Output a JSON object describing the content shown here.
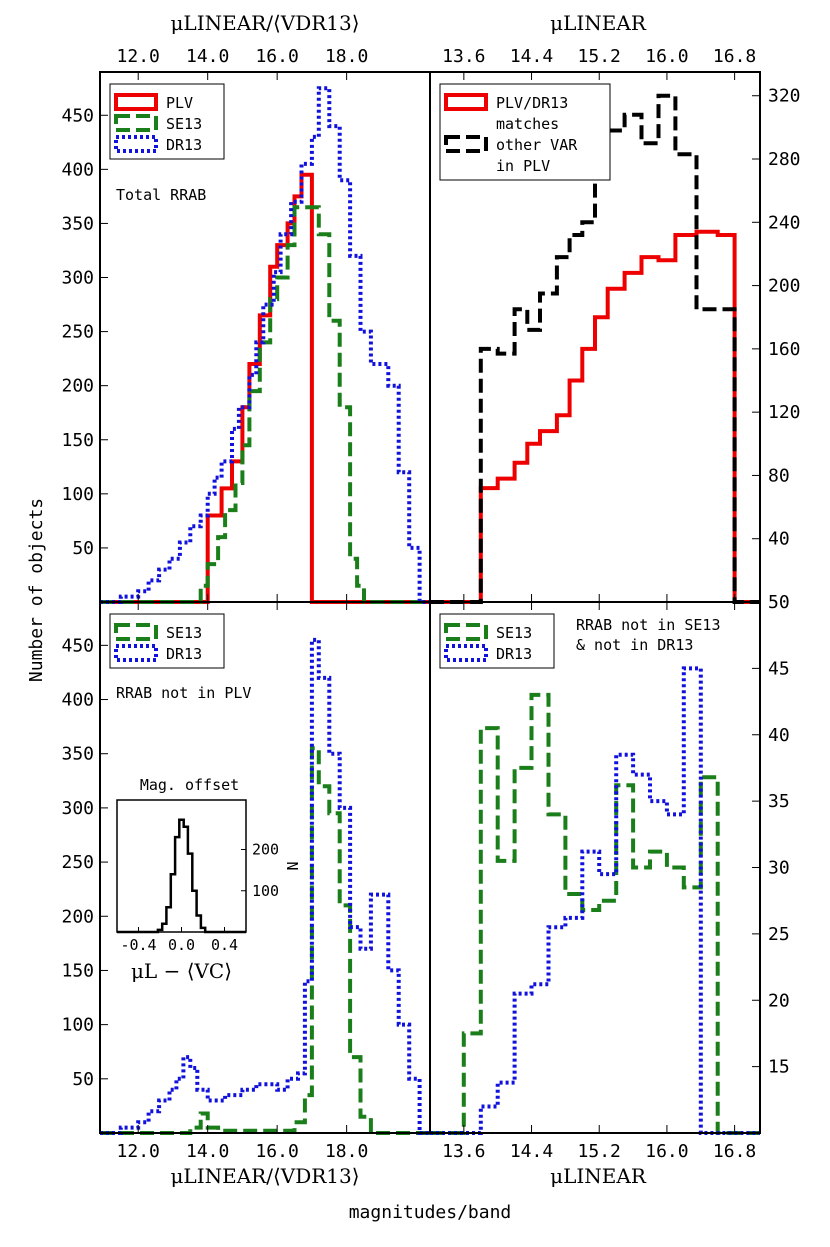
{
  "figure": {
    "top_axis_title": "μLINEAR/⟨VDR13⟩",
    "top_right_axis_title": "μLINEAR",
    "bottom_axis_title": "μLINEAR/⟨VDR13⟩",
    "bottom_right_axis_title": "μLINEAR",
    "ylabel": "Number of objects",
    "xlabel": "magnitudes/band",
    "top_ticks_left": [
      "12.0",
      "14.0",
      "16.0",
      "18.0"
    ],
    "top_ticks_right": [
      "13.6",
      "14.4",
      "15.2",
      "16.0",
      "16.8"
    ],
    "bottom_ticks_left": [
      "12.0",
      "14.0",
      "16.0",
      "18.0"
    ],
    "bottom_ticks_right": [
      "13.6",
      "14.4",
      "15.2",
      "16.0",
      "16.8"
    ]
  },
  "chart_data": [
    {
      "type": "line",
      "panel": "top-left",
      "annotation": "Total RRAB",
      "ylim": [
        0,
        490
      ],
      "yticks": [
        "50",
        "100",
        "150",
        "200",
        "250",
        "300",
        "350",
        "400",
        "450"
      ],
      "xlim": [
        10.9,
        20.4
      ],
      "legend": "top-left",
      "series": [
        {
          "name": "PLV",
          "color": "#ee0000",
          "style": "solid",
          "x": [
            10.9,
            14.0,
            14.0,
            14.4,
            14.4,
            14.7,
            14.7,
            15.0,
            15.0,
            15.2,
            15.2,
            15.5,
            15.5,
            15.8,
            15.8,
            16.0,
            16.0,
            16.3,
            16.3,
            16.5,
            16.5,
            16.7,
            16.7,
            17.0,
            17.0,
            20.4
          ],
          "y": [
            0,
            0,
            80,
            80,
            105,
            105,
            130,
            130,
            180,
            180,
            220,
            220,
            265,
            265,
            310,
            310,
            330,
            330,
            350,
            350,
            375,
            375,
            395,
            395,
            0,
            0
          ]
        },
        {
          "name": "SE13",
          "color": "#1a7f1a",
          "style": "dashed",
          "x": [
            10.9,
            13.8,
            13.8,
            14.0,
            14.0,
            14.3,
            14.3,
            14.5,
            14.5,
            14.8,
            14.8,
            15.0,
            15.0,
            15.2,
            15.2,
            15.5,
            15.5,
            15.8,
            15.8,
            16.0,
            16.0,
            16.3,
            16.3,
            16.5,
            16.5,
            17.2,
            17.2,
            17.5,
            17.5,
            17.8,
            17.8,
            18.1,
            18.1,
            18.3,
            18.3,
            18.5,
            18.5,
            20.4
          ],
          "y": [
            0,
            0,
            15,
            15,
            35,
            35,
            60,
            60,
            85,
            85,
            110,
            110,
            145,
            145,
            195,
            195,
            240,
            240,
            280,
            280,
            300,
            300,
            330,
            330,
            365,
            365,
            340,
            340,
            260,
            260,
            180,
            180,
            40,
            40,
            15,
            15,
            0,
            0
          ]
        },
        {
          "name": "DR13",
          "color": "#1111dd",
          "style": "dotted",
          "x": [
            10.9,
            11.5,
            11.5,
            12.0,
            12.0,
            12.3,
            12.3,
            12.6,
            12.6,
            12.9,
            12.9,
            13.2,
            13.2,
            13.5,
            13.5,
            13.8,
            13.8,
            14.0,
            14.0,
            14.2,
            14.2,
            14.4,
            14.4,
            14.7,
            14.7,
            14.9,
            14.9,
            15.2,
            15.2,
            15.4,
            15.4,
            15.6,
            15.6,
            15.9,
            15.9,
            16.1,
            16.1,
            16.4,
            16.4,
            16.7,
            16.7,
            17.0,
            17.0,
            17.2,
            17.2,
            17.5,
            17.5,
            17.8,
            17.8,
            18.1,
            18.1,
            18.4,
            18.4,
            18.7,
            18.7,
            19.2,
            19.2,
            19.5,
            19.5,
            19.8,
            19.8,
            20.1,
            20.1,
            20.4
          ],
          "y": [
            0,
            0,
            5,
            5,
            10,
            10,
            20,
            20,
            30,
            30,
            40,
            40,
            55,
            55,
            70,
            70,
            80,
            80,
            100,
            100,
            115,
            115,
            130,
            130,
            160,
            160,
            180,
            180,
            210,
            210,
            240,
            240,
            275,
            275,
            305,
            305,
            340,
            340,
            370,
            370,
            405,
            405,
            430,
            430,
            475,
            475,
            440,
            440,
            390,
            390,
            320,
            320,
            250,
            250,
            220,
            220,
            200,
            200,
            120,
            120,
            50,
            50,
            0,
            0
          ]
        }
      ]
    },
    {
      "type": "line",
      "panel": "top-right",
      "ylim": [
        0,
        335
      ],
      "yticks": [
        "40",
        "80",
        "120",
        "160",
        "200",
        "240",
        "280",
        "320"
      ],
      "xlim": [
        13.2,
        17.1
      ],
      "legend": "top-left",
      "series": [
        {
          "name": "PLV/DR13 matches",
          "color": "#ee0000",
          "style": "solid",
          "x": [
            13.2,
            13.8,
            13.8,
            14.0,
            14.0,
            14.2,
            14.2,
            14.35,
            14.35,
            14.5,
            14.5,
            14.7,
            14.7,
            14.85,
            14.85,
            15.0,
            15.0,
            15.15,
            15.15,
            15.3,
            15.3,
            15.5,
            15.5,
            15.7,
            15.7,
            15.9,
            15.9,
            16.1,
            16.1,
            16.35,
            16.35,
            16.6,
            16.6,
            16.8,
            16.8,
            17.1
          ],
          "y": [
            0,
            0,
            72,
            72,
            78,
            78,
            88,
            88,
            100,
            100,
            108,
            108,
            118,
            118,
            140,
            140,
            160,
            160,
            180,
            180,
            198,
            198,
            208,
            208,
            218,
            218,
            216,
            216,
            232,
            232,
            234,
            234,
            232,
            232,
            0,
            0
          ]
        },
        {
          "name": "other VAR in PLV",
          "color": "#000000",
          "style": "dashed",
          "x": [
            13.2,
            13.8,
            13.8,
            14.0,
            14.0,
            14.2,
            14.2,
            14.35,
            14.35,
            14.5,
            14.5,
            14.7,
            14.7,
            14.85,
            14.85,
            15.0,
            15.0,
            15.15,
            15.15,
            15.3,
            15.3,
            15.5,
            15.5,
            15.7,
            15.7,
            15.9,
            15.9,
            16.1,
            16.1,
            16.35,
            16.35,
            16.6,
            16.6,
            16.8,
            16.8,
            17.1
          ],
          "y": [
            0,
            0,
            160,
            160,
            157,
            157,
            185,
            185,
            172,
            172,
            195,
            195,
            218,
            218,
            232,
            232,
            240,
            240,
            272,
            272,
            298,
            298,
            308,
            308,
            290,
            290,
            320,
            320,
            283,
            283,
            185,
            185,
            185,
            185,
            0,
            0
          ]
        }
      ]
    },
    {
      "type": "line",
      "panel": "bottom-left",
      "annotation": "RRAB not in PLV",
      "ylim": [
        0,
        490
      ],
      "yticks": [
        "50",
        "100",
        "150",
        "200",
        "250",
        "300",
        "350",
        "400",
        "450"
      ],
      "xlim": [
        10.9,
        20.4
      ],
      "legend": "top-left",
      "series": [
        {
          "name": "SE13",
          "color": "#1a7f1a",
          "style": "dashed",
          "x": [
            10.9,
            13.5,
            13.5,
            13.8,
            13.8,
            14.0,
            14.0,
            14.3,
            14.3,
            16.5,
            16.5,
            16.8,
            16.8,
            17.0,
            17.0,
            17.2,
            17.2,
            17.5,
            17.5,
            17.8,
            17.8,
            18.1,
            18.1,
            18.4,
            18.4,
            18.7,
            18.7,
            20.4
          ],
          "y": [
            0,
            0,
            5,
            5,
            18,
            18,
            5,
            5,
            2,
            2,
            10,
            10,
            35,
            35,
            355,
            355,
            320,
            320,
            295,
            295,
            210,
            210,
            70,
            70,
            15,
            15,
            0,
            0
          ]
        },
        {
          "name": "DR13",
          "color": "#1111dd",
          "style": "dotted",
          "x": [
            10.9,
            11.5,
            11.5,
            12.0,
            12.0,
            12.3,
            12.3,
            12.6,
            12.6,
            12.9,
            12.9,
            13.1,
            13.1,
            13.3,
            13.3,
            13.5,
            13.5,
            13.7,
            13.7,
            14.0,
            14.0,
            14.5,
            14.5,
            15.0,
            15.0,
            15.4,
            15.4,
            16.0,
            16.0,
            16.3,
            16.3,
            16.6,
            16.6,
            16.8,
            16.8,
            17.0,
            17.0,
            17.2,
            17.2,
            17.5,
            17.5,
            17.8,
            17.8,
            18.1,
            18.1,
            18.4,
            18.4,
            18.7,
            18.7,
            19.2,
            19.2,
            19.5,
            19.5,
            19.8,
            19.8,
            20.1,
            20.1,
            20.4
          ],
          "y": [
            0,
            0,
            5,
            5,
            10,
            10,
            20,
            20,
            30,
            30,
            40,
            40,
            50,
            50,
            70,
            70,
            60,
            60,
            40,
            40,
            30,
            30,
            35,
            35,
            40,
            40,
            45,
            45,
            40,
            40,
            50,
            50,
            55,
            55,
            140,
            140,
            455,
            455,
            420,
            420,
            350,
            350,
            300,
            300,
            190,
            190,
            170,
            170,
            220,
            220,
            150,
            150,
            100,
            100,
            50,
            50,
            0,
            0
          ]
        }
      ]
    },
    {
      "type": "line",
      "panel": "bottom-left-inset",
      "title": "Mag. offset",
      "xlabel": "μL − ⟨VC⟩",
      "ylabel": "N",
      "xticks": [
        "-0.4",
        "0.0",
        "0.4"
      ],
      "yticks": [
        "100",
        "200"
      ],
      "xlim": [
        -0.6,
        0.6
      ],
      "ylim": [
        0,
        320
      ],
      "series": [
        {
          "name": "",
          "color": "#000000",
          "style": "solid",
          "x": [
            -0.6,
            -0.22,
            -0.22,
            -0.18,
            -0.18,
            -0.14,
            -0.14,
            -0.1,
            -0.1,
            -0.06,
            -0.06,
            -0.02,
            -0.02,
            0.02,
            0.02,
            0.06,
            0.06,
            0.1,
            0.1,
            0.14,
            0.14,
            0.18,
            0.18,
            0.22,
            0.22,
            0.6
          ],
          "y": [
            0,
            0,
            5,
            5,
            20,
            20,
            60,
            60,
            140,
            140,
            230,
            230,
            272,
            272,
            255,
            255,
            190,
            190,
            100,
            100,
            40,
            40,
            10,
            10,
            0,
            0
          ]
        }
      ]
    },
    {
      "type": "line",
      "panel": "bottom-right",
      "annotation": "RRAB not in SE13 & not in DR13",
      "ylim": [
        10,
        50
      ],
      "yticks": [
        "15",
        "20",
        "25",
        "30",
        "35",
        "40",
        "45",
        "50"
      ],
      "xlim": [
        13.2,
        17.1
      ],
      "legend": "top-left",
      "series": [
        {
          "name": "SE13",
          "color": "#1a7f1a",
          "style": "dashed",
          "x": [
            13.2,
            13.6,
            13.6,
            13.8,
            13.8,
            14.0,
            14.0,
            14.2,
            14.2,
            14.4,
            14.4,
            14.6,
            14.6,
            14.8,
            14.8,
            15.0,
            15.0,
            15.2,
            15.2,
            15.4,
            15.4,
            15.6,
            15.6,
            15.8,
            15.8,
            16.0,
            16.0,
            16.2,
            16.2,
            16.4,
            16.4,
            16.6,
            16.6,
            16.8,
            16.8,
            17.1
          ],
          "y": [
            10,
            10,
            17.5,
            17.5,
            40.5,
            40.5,
            30.5,
            30.5,
            37.5,
            37.5,
            43,
            43,
            34,
            34,
            28,
            28,
            26.8,
            26.8,
            27.5,
            27.5,
            36.2,
            36.2,
            30,
            30,
            31.2,
            31.2,
            30,
            30,
            28.5,
            28.5,
            36.8,
            36.8,
            10,
            10,
            10,
            10
          ]
        },
        {
          "name": "DR13",
          "color": "#1111dd",
          "style": "dotted",
          "x": [
            13.2,
            13.6,
            13.6,
            13.8,
            13.8,
            14.0,
            14.0,
            14.2,
            14.2,
            14.4,
            14.4,
            14.6,
            14.6,
            14.8,
            14.8,
            15.0,
            15.0,
            15.2,
            15.2,
            15.4,
            15.4,
            15.6,
            15.6,
            15.8,
            15.8,
            16.0,
            16.0,
            16.2,
            16.2,
            16.4,
            16.4,
            16.6,
            16.6,
            16.8,
            16.8,
            17.1
          ],
          "y": [
            10,
            10,
            10,
            10,
            12,
            12,
            13.8,
            13.8,
            20.5,
            20.5,
            21.2,
            21.2,
            25.5,
            25.5,
            26.2,
            26.2,
            31.2,
            31.2,
            29.5,
            29.5,
            38.5,
            38.5,
            37,
            37,
            35,
            35,
            34,
            34,
            45,
            45,
            10,
            10,
            10,
            10,
            10,
            10
          ]
        }
      ]
    }
  ]
}
